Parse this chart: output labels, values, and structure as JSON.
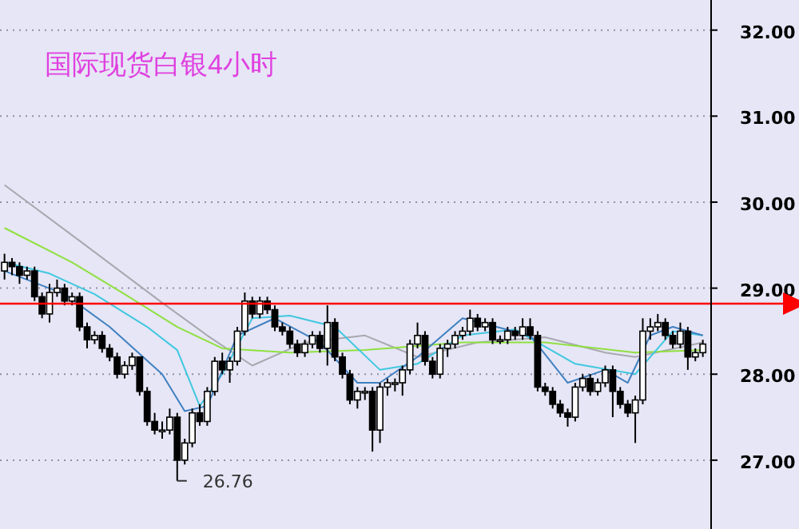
{
  "chart_data": {
    "type": "candlestick",
    "title": "国际现货白银4小时",
    "categories": [
      null,
      null,
      null,
      null,
      null,
      null,
      null,
      null,
      null,
      null,
      null,
      null,
      null,
      null,
      null,
      null,
      null,
      null,
      null,
      null,
      null,
      null,
      null,
      null,
      null,
      null,
      null,
      null,
      null,
      null,
      null,
      null,
      null,
      null,
      null,
      null,
      null,
      null,
      null,
      null,
      null,
      null,
      null,
      null,
      null,
      null,
      null,
      null,
      null,
      null,
      null,
      null,
      null,
      null,
      null,
      null,
      null,
      null,
      null,
      null,
      null,
      null,
      null,
      null,
      null,
      null,
      null,
      null,
      null,
      null,
      null,
      null,
      null,
      null,
      null,
      null,
      null,
      null,
      null,
      null,
      null,
      null,
      null,
      null,
      null,
      null,
      null,
      null,
      null,
      null,
      null,
      null,
      null,
      null
    ],
    "ohlc": [
      [
        29.2,
        29.4,
        29.1,
        29.3
      ],
      [
        29.3,
        29.35,
        29.15,
        29.25
      ],
      [
        29.25,
        29.3,
        29.05,
        29.15
      ],
      [
        29.15,
        29.25,
        29.1,
        29.2
      ],
      [
        29.2,
        29.25,
        28.85,
        28.9
      ],
      [
        28.9,
        28.95,
        28.65,
        28.7
      ],
      [
        28.7,
        29.05,
        28.6,
        28.95
      ],
      [
        28.95,
        29.1,
        28.9,
        29.0
      ],
      [
        29.0,
        29.05,
        28.8,
        28.85
      ],
      [
        28.85,
        28.95,
        28.8,
        28.9
      ],
      [
        28.9,
        28.95,
        28.5,
        28.55
      ],
      [
        28.55,
        28.6,
        28.3,
        28.4
      ],
      [
        28.4,
        28.5,
        28.35,
        28.45
      ],
      [
        28.45,
        28.5,
        28.25,
        28.3
      ],
      [
        28.3,
        28.35,
        28.15,
        28.2
      ],
      [
        28.2,
        28.25,
        27.95,
        28.0
      ],
      [
        28.0,
        28.15,
        27.95,
        28.1
      ],
      [
        28.1,
        28.25,
        28.05,
        28.2
      ],
      [
        28.2,
        28.2,
        27.75,
        27.8
      ],
      [
        27.8,
        27.85,
        27.4,
        27.45
      ],
      [
        27.45,
        27.55,
        27.3,
        27.35
      ],
      [
        27.35,
        27.45,
        27.25,
        27.35
      ],
      [
        27.35,
        27.6,
        27.3,
        27.5
      ],
      [
        27.5,
        27.55,
        26.76,
        27.0
      ],
      [
        27.0,
        27.25,
        26.95,
        27.2
      ],
      [
        27.2,
        27.6,
        27.15,
        27.55
      ],
      [
        27.55,
        27.65,
        27.4,
        27.45
      ],
      [
        27.45,
        27.85,
        27.4,
        27.8
      ],
      [
        27.8,
        28.2,
        27.75,
        28.15
      ],
      [
        28.15,
        28.25,
        28.0,
        28.05
      ],
      [
        28.05,
        28.2,
        27.9,
        28.15
      ],
      [
        28.15,
        28.55,
        28.1,
        28.5
      ],
      [
        28.5,
        28.95,
        28.45,
        28.85
      ],
      [
        28.85,
        28.9,
        28.65,
        28.7
      ],
      [
        28.7,
        28.9,
        28.65,
        28.85
      ],
      [
        28.85,
        28.9,
        28.7,
        28.75
      ],
      [
        28.75,
        28.8,
        28.5,
        28.55
      ],
      [
        28.55,
        28.6,
        28.45,
        28.5
      ],
      [
        28.5,
        28.55,
        28.3,
        28.35
      ],
      [
        28.35,
        28.4,
        28.2,
        28.25
      ],
      [
        28.25,
        28.4,
        28.2,
        28.35
      ],
      [
        28.35,
        28.5,
        28.3,
        28.45
      ],
      [
        28.45,
        28.5,
        28.25,
        28.3
      ],
      [
        28.3,
        28.8,
        28.1,
        28.6
      ],
      [
        28.6,
        28.65,
        28.15,
        28.2
      ],
      [
        28.2,
        28.25,
        27.95,
        28.0
      ],
      [
        28.0,
        28.05,
        27.65,
        27.7
      ],
      [
        27.7,
        27.85,
        27.6,
        27.8
      ],
      [
        27.8,
        27.85,
        27.7,
        27.8
      ],
      [
        27.8,
        27.85,
        27.1,
        27.35
      ],
      [
        27.35,
        27.9,
        27.2,
        27.85
      ],
      [
        27.85,
        27.95,
        27.75,
        27.9
      ],
      [
        27.9,
        27.95,
        27.8,
        27.9
      ],
      [
        27.9,
        28.1,
        27.75,
        28.05
      ],
      [
        28.05,
        28.4,
        28.0,
        28.35
      ],
      [
        28.35,
        28.6,
        28.3,
        28.45
      ],
      [
        28.45,
        28.5,
        28.1,
        28.15
      ],
      [
        28.15,
        28.2,
        27.95,
        28.0
      ],
      [
        28.0,
        28.35,
        27.95,
        28.3
      ],
      [
        28.3,
        28.4,
        28.2,
        28.35
      ],
      [
        28.35,
        28.5,
        28.3,
        28.45
      ],
      [
        28.45,
        28.55,
        28.4,
        28.5
      ],
      [
        28.5,
        28.75,
        28.45,
        28.65
      ],
      [
        28.65,
        28.7,
        28.5,
        28.55
      ],
      [
        28.55,
        28.65,
        28.5,
        28.6
      ],
      [
        28.6,
        28.65,
        28.35,
        28.4
      ],
      [
        28.4,
        28.45,
        28.35,
        28.4
      ],
      [
        28.4,
        28.55,
        28.35,
        28.5
      ],
      [
        28.5,
        28.55,
        28.4,
        28.45
      ],
      [
        28.45,
        28.65,
        28.4,
        28.55
      ],
      [
        28.55,
        28.65,
        28.4,
        28.45
      ],
      [
        28.45,
        28.5,
        27.8,
        27.85
      ],
      [
        27.85,
        27.9,
        27.75,
        27.8
      ],
      [
        27.8,
        27.85,
        27.6,
        27.65
      ],
      [
        27.65,
        27.7,
        27.5,
        27.55
      ],
      [
        27.55,
        27.6,
        27.39,
        27.5
      ],
      [
        27.5,
        27.9,
        27.45,
        27.85
      ],
      [
        27.85,
        28.0,
        27.8,
        27.95
      ],
      [
        27.95,
        28.0,
        27.75,
        27.8
      ],
      [
        27.8,
        27.95,
        27.75,
        27.9
      ],
      [
        27.9,
        28.1,
        27.85,
        28.05
      ],
      [
        28.05,
        28.1,
        27.5,
        27.8
      ],
      [
        27.8,
        27.85,
        27.6,
        27.65
      ],
      [
        27.65,
        27.7,
        27.5,
        27.55
      ],
      [
        27.55,
        27.75,
        27.2,
        27.7
      ],
      [
        27.7,
        28.65,
        27.65,
        28.5
      ],
      [
        28.5,
        28.65,
        28.4,
        28.55
      ],
      [
        28.55,
        28.7,
        28.5,
        28.6
      ],
      [
        28.6,
        28.65,
        28.4,
        28.45
      ],
      [
        28.45,
        28.5,
        28.3,
        28.35
      ],
      [
        28.35,
        28.6,
        28.3,
        28.5
      ],
      [
        28.5,
        28.55,
        28.05,
        28.2
      ],
      [
        28.2,
        28.3,
        28.15,
        28.25
      ],
      [
        28.25,
        28.4,
        28.2,
        28.35
      ]
    ],
    "series": [
      {
        "type": "line",
        "color": "#a8a8b0",
        "values": [
          30.2,
          null,
          null,
          null,
          null,
          null,
          null,
          null,
          null,
          null,
          29.55,
          null,
          null,
          null,
          null,
          null,
          null,
          null,
          null,
          null,
          null,
          28.83,
          null,
          null,
          null,
          null,
          null,
          28.45,
          null,
          null,
          null,
          null,
          null,
          28.1,
          null,
          null,
          null,
          null,
          null,
          null,
          28.37,
          null,
          null,
          null,
          null,
          null,
          null,
          null,
          28.45,
          null,
          null,
          null,
          null,
          null,
          null,
          28.2,
          null,
          null,
          null,
          null,
          null,
          null,
          null,
          28.37,
          null,
          null,
          null,
          null,
          null,
          null,
          null,
          null,
          28.43,
          null,
          null,
          null,
          null,
          null,
          null,
          null,
          28.25,
          null,
          null,
          null,
          28.2,
          null,
          null,
          null,
          null,
          null,
          null,
          null,
          null,
          28.37
        ]
      },
      {
        "type": "line",
        "color": "#90e040",
        "values": [
          29.7,
          null,
          null,
          null,
          null,
          null,
          null,
          null,
          null,
          29.3,
          null,
          null,
          null,
          null,
          null,
          null,
          28.93,
          null,
          null,
          null,
          null,
          null,
          null,
          28.55,
          null,
          null,
          null,
          null,
          null,
          28.3,
          null,
          null,
          null,
          null,
          null,
          null,
          null,
          null,
          28.25,
          null,
          null,
          null,
          null,
          null,
          null,
          null,
          null,
          null,
          28.28,
          null,
          null,
          null,
          null,
          null,
          null,
          null,
          null,
          null,
          null,
          null,
          null,
          28.37,
          null,
          null,
          null,
          null,
          null,
          null,
          null,
          null,
          null,
          null,
          28.37,
          null,
          null,
          null,
          null,
          null,
          null,
          null,
          null,
          null,
          null,
          null,
          28.25,
          null,
          null,
          null,
          null,
          null,
          null,
          null,
          null,
          28.28
        ]
      },
      {
        "type": "line",
        "color": "#40c8e0",
        "values": [
          29.3,
          null,
          null,
          null,
          null,
          null,
          29.17,
          null,
          null,
          null,
          null,
          null,
          28.93,
          null,
          null,
          null,
          null,
          null,
          null,
          28.55,
          null,
          null,
          null,
          28.28,
          null,
          null,
          27.63,
          null,
          null,
          28.0,
          null,
          null,
          null,
          28.65,
          null,
          null,
          null,
          null,
          28.68,
          null,
          null,
          null,
          null,
          null,
          28.55,
          null,
          null,
          null,
          null,
          null,
          28.05,
          null,
          null,
          null,
          null,
          28.12,
          null,
          null,
          null,
          null,
          null,
          28.45,
          null,
          null,
          null,
          null,
          null,
          null,
          28.52,
          null,
          null,
          null,
          null,
          null,
          null,
          null,
          28.12,
          null,
          null,
          null,
          null,
          null,
          null,
          null,
          28.0,
          null,
          null,
          null,
          null,
          28.5,
          null,
          null,
          null,
          28.45
        ]
      },
      {
        "type": "line",
        "color": "#4080c0",
        "values": [
          29.2,
          null,
          null,
          null,
          null,
          null,
          null,
          null,
          28.93,
          null,
          null,
          null,
          null,
          null,
          28.55,
          null,
          null,
          null,
          null,
          null,
          null,
          28.0,
          null,
          null,
          27.57,
          null,
          null,
          27.63,
          null,
          null,
          null,
          28.45,
          null,
          null,
          null,
          null,
          28.65,
          null,
          null,
          null,
          null,
          null,
          28.37,
          null,
          null,
          null,
          null,
          27.9,
          null,
          null,
          27.9,
          null,
          null,
          null,
          null,
          28.2,
          null,
          null,
          null,
          null,
          null,
          28.65,
          null,
          null,
          null,
          null,
          null,
          null,
          null,
          null,
          28.45,
          null,
          null,
          null,
          null,
          27.9,
          null,
          null,
          null,
          null,
          28.05,
          null,
          null,
          27.9,
          null,
          null,
          28.45,
          null,
          null,
          28.55,
          null,
          null,
          null,
          28.45
        ]
      }
    ],
    "ylim": [
      26.2,
      32.35
    ],
    "yticks": [
      {
        "value": 27,
        "label": "27.00"
      },
      {
        "value": 28,
        "label": "28.00"
      },
      {
        "value": 29,
        "label": "29.00"
      },
      {
        "value": 30,
        "label": "30.00"
      },
      {
        "value": 31,
        "label": "31.00"
      },
      {
        "value": 32,
        "label": "32.00"
      }
    ],
    "ref_lines": [
      {
        "axis": "y",
        "value": 28.82,
        "color": "#ff0000"
      }
    ],
    "annotations": [
      "26.76"
    ],
    "grid": "y",
    "tick_labels": "y"
  }
}
